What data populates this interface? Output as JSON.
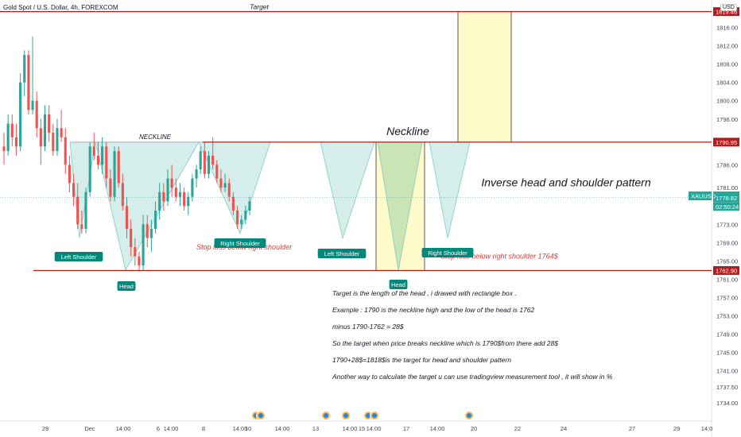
{
  "header": {
    "title": "Gold Spot / U.S. Dollar, 4h, FOREXCOM",
    "currency": "USD"
  },
  "colors": {
    "up": "#26a69a",
    "down": "#ef5350",
    "level": "#b71c1c",
    "pattern_fill": "#b2dfdb",
    "box_fill": "#fff9c4",
    "label_bg": "#00897b",
    "accent_red": "#e53935"
  },
  "chart_data": {
    "type": "candlestick",
    "ylim": [
      1730,
      1822
    ],
    "y_ticks": [
      "1816.00",
      "1812.00",
      "1808.00",
      "1804.00",
      "1800.00",
      "1796.00",
      "1786.00",
      "1781.00",
      "1777.00",
      "1773.00",
      "1769.00",
      "1765.00",
      "1761.00",
      "1757.00",
      "1753.00",
      "1749.00",
      "1745.00",
      "1741.00",
      "1737.50",
      "1734.00"
    ],
    "x_ticks": [
      "29",
      "Dec",
      "14:00",
      "6",
      "14:00",
      "8",
      "14:00",
      "10",
      "14:00",
      "13",
      "14:00",
      "15",
      "14:00",
      "17",
      "14:00",
      "20",
      "22",
      "24",
      "27",
      "29",
      "14:0"
    ],
    "price_badges": [
      {
        "label": "1819.46",
        "value": 1819.46,
        "color": "#b71c1c"
      },
      {
        "label": "1790.95",
        "value": 1790.95,
        "color": "#b71c1c"
      },
      {
        "label": "1762.90",
        "value": 1762.9,
        "color": "#b71c1c"
      },
      {
        "label": "XAUUSD",
        "value": 1779.2,
        "color": "#26a69a"
      },
      {
        "label": "1778.82",
        "value": 1778.82,
        "color": "#26a69a"
      },
      {
        "label": "02:50:24",
        "value": 1776.9,
        "color": "#26a69a"
      }
    ],
    "levels": [
      {
        "name": "Target",
        "value": 1819.46
      },
      {
        "name": "Neckline",
        "value": 1790.95
      },
      {
        "name": "Head low",
        "value": 1762.9
      }
    ],
    "last_price": 1778.82,
    "candles": [
      [
        1790,
        1793,
        1786,
        1789
      ],
      [
        1789,
        1797,
        1788,
        1795
      ],
      [
        1795,
        1797,
        1790,
        1792
      ],
      [
        1792,
        1795,
        1788,
        1790
      ],
      [
        1790,
        1806,
        1789,
        1804
      ],
      [
        1804,
        1811,
        1801,
        1810
      ],
      [
        1810,
        1811,
        1797,
        1798
      ],
      [
        1798,
        1814,
        1797,
        1800
      ],
      [
        1800,
        1802,
        1792,
        1794
      ],
      [
        1794,
        1796,
        1786,
        1790
      ],
      [
        1790,
        1799,
        1789,
        1797
      ],
      [
        1797,
        1799,
        1791,
        1793
      ],
      [
        1793,
        1795,
        1788,
        1789
      ],
      [
        1789,
        1796,
        1788,
        1794
      ],
      [
        1794,
        1798,
        1791,
        1792
      ],
      [
        1792,
        1794,
        1784,
        1786
      ],
      [
        1786,
        1788,
        1780,
        1782
      ],
      [
        1782,
        1784,
        1777,
        1779
      ],
      [
        1779,
        1782,
        1772,
        1773
      ],
      [
        1773,
        1776,
        1771,
        1772
      ],
      [
        1772,
        1781,
        1771,
        1780
      ],
      [
        1780,
        1791,
        1779,
        1790
      ],
      [
        1790,
        1793,
        1787,
        1788
      ],
      [
        1788,
        1791,
        1785,
        1786
      ],
      [
        1786,
        1792,
        1784,
        1790
      ],
      [
        1790,
        1791,
        1781,
        1783
      ],
      [
        1783,
        1785,
        1778,
        1779
      ],
      [
        1779,
        1790,
        1778,
        1789
      ],
      [
        1789,
        1790,
        1781,
        1782
      ],
      [
        1782,
        1784,
        1776,
        1777
      ],
      [
        1777,
        1779,
        1770,
        1772
      ],
      [
        1772,
        1774,
        1766,
        1768
      ],
      [
        1768,
        1770,
        1764,
        1766
      ],
      [
        1766,
        1767,
        1763,
        1764
      ],
      [
        1764,
        1775,
        1763,
        1773
      ],
      [
        1773,
        1775,
        1768,
        1770
      ],
      [
        1770,
        1774,
        1767,
        1772
      ],
      [
        1772,
        1778,
        1771,
        1776
      ],
      [
        1776,
        1782,
        1774,
        1780
      ],
      [
        1780,
        1782,
        1776,
        1778
      ],
      [
        1778,
        1785,
        1777,
        1783
      ],
      [
        1783,
        1786,
        1779,
        1781
      ],
      [
        1781,
        1783,
        1778,
        1779
      ],
      [
        1779,
        1782,
        1777,
        1780
      ],
      [
        1780,
        1781,
        1776,
        1777
      ],
      [
        1777,
        1780,
        1775,
        1779
      ],
      [
        1779,
        1784,
        1778,
        1783
      ],
      [
        1783,
        1786,
        1781,
        1785
      ],
      [
        1785,
        1790,
        1784,
        1789
      ],
      [
        1789,
        1791,
        1783,
        1784
      ],
      [
        1784,
        1789,
        1783,
        1788
      ],
      [
        1788,
        1792,
        1785,
        1786
      ],
      [
        1786,
        1787,
        1782,
        1783
      ],
      [
        1783,
        1785,
        1780,
        1781
      ],
      [
        1781,
        1784,
        1780,
        1782
      ],
      [
        1782,
        1783,
        1778,
        1779
      ],
      [
        1779,
        1780,
        1775,
        1776
      ],
      [
        1776,
        1777,
        1772,
        1773
      ],
      [
        1773,
        1775,
        1772,
        1774
      ],
      [
        1774,
        1777,
        1773,
        1776
      ],
      [
        1776,
        1779,
        1775,
        1778
      ]
    ]
  },
  "annotations": {
    "target": "Target",
    "neckline_small": "NECKLINE",
    "neckline_big": "Neckline",
    "pattern_title": "Inverse head and shoulder pattern",
    "left_shoulder": "Left Shoulder",
    "head": "Head",
    "right_shoulder": "Right Shoulder",
    "stop_loss_1": "Stop loss below right shoulder",
    "stop_loss_2": "Stop loss below right shoulder 1764$",
    "notes": [
      "Target is the length of the head , i drawed with rectangle box .",
      "Example : 1790 is the neckline high and the low of the head is 1762",
      "minus 1790-1762 = 28$",
      "So the target when price breaks neckline which is 1790$from there add 28$",
      "1790+28$=1818$is the target for head and shoulder pattern",
      "Another way to calculate the target u can use tradingview measurement tool , it will show in %"
    ]
  }
}
